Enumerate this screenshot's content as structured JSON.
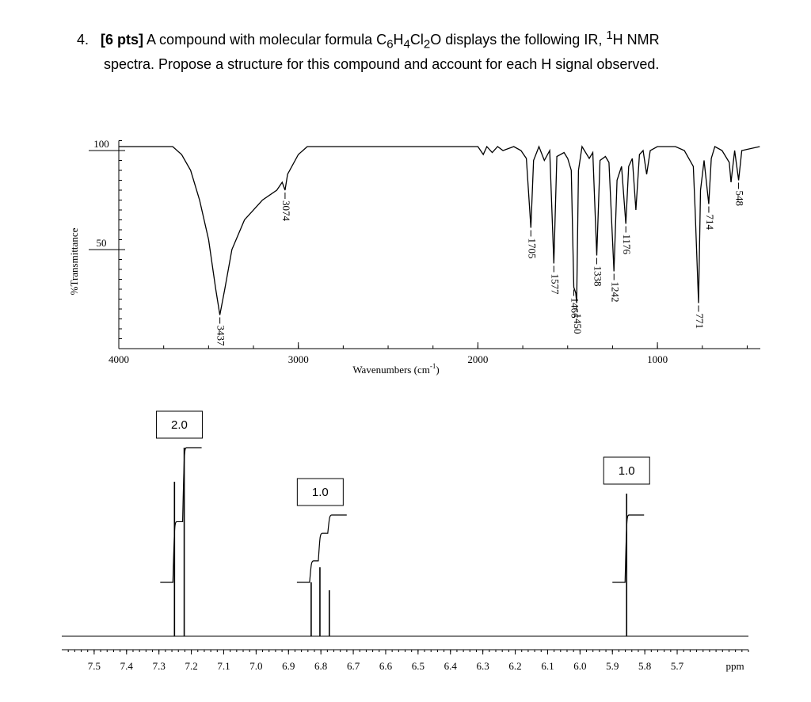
{
  "question": {
    "number": "4.",
    "points": "[6 pts]",
    "text_a": "A compound with molecular formula C",
    "sub_1": "6",
    "text_b": "H",
    "sub_2": "4",
    "text_c": "Cl",
    "sub_3": "2",
    "text_d": "O displays the following IR, ",
    "sup_1": "1",
    "text_e": "H NMR",
    "line_2": "spectra. Propose a structure for this compound and account for each H signal observed."
  },
  "chart_data": [
    {
      "type": "line",
      "y_label": "%Transmittance",
      "x_label": "Wavenumbers (cm",
      "x_label_sup": "-1",
      "x_label_end": ")",
      "xlim": [
        4000,
        427
      ],
      "ylim": [
        0,
        105
      ],
      "xticks": [
        4000,
        3000,
        2000,
        1000
      ],
      "yticks": [
        100,
        50
      ],
      "color": "#000000",
      "x": [
        4000,
        3700,
        3650,
        3600,
        3550,
        3500,
        3460,
        3437,
        3410,
        3370,
        3300,
        3200,
        3120,
        3090,
        3074,
        3060,
        3000,
        2950,
        2500,
        2000,
        1970,
        1950,
        1920,
        1890,
        1860,
        1800,
        1760,
        1730,
        1705,
        1690,
        1660,
        1630,
        1600,
        1577,
        1560,
        1520,
        1500,
        1480,
        1466,
        1455,
        1450,
        1440,
        1420,
        1380,
        1360,
        1338,
        1320,
        1290,
        1270,
        1242,
        1225,
        1200,
        1176,
        1160,
        1140,
        1120,
        1100,
        1080,
        1060,
        1040,
        1000,
        900,
        850,
        800,
        790,
        771,
        760,
        740,
        714,
        700,
        680,
        640,
        600,
        590,
        570,
        548,
        530,
        430
      ],
      "values": [
        102,
        102,
        98,
        90,
        75,
        55,
        30,
        17,
        30,
        50,
        65,
        75,
        80,
        84,
        80,
        88,
        98,
        102,
        102,
        102,
        98,
        102,
        99,
        102,
        100,
        102,
        100,
        96,
        61,
        95,
        102,
        95,
        100,
        43,
        97,
        99,
        96,
        90,
        31,
        28,
        23,
        90,
        102,
        96,
        99,
        47,
        95,
        97,
        94,
        39,
        85,
        92,
        63,
        92,
        96,
        70,
        98,
        100,
        88,
        100,
        102,
        102,
        100,
        92,
        70,
        23,
        80,
        95,
        73,
        96,
        102,
        100,
        94,
        84,
        100,
        85,
        100,
        102
      ],
      "peak_labels": [
        3437,
        3074,
        1705,
        1577,
        1466,
        1450,
        1338,
        1242,
        1176,
        771,
        714,
        548
      ]
    },
    {
      "type": "nmr",
      "x_label": "ppm",
      "xlim": [
        7.6,
        5.48
      ],
      "ylim": [
        0,
        250
      ],
      "color": "#000000",
      "xticks": [
        7.5,
        7.4,
        7.3,
        7.2,
        7.1,
        {
          "value": 7,
          "label": "7.0"
        },
        6.9,
        6.8,
        6.7,
        6.6,
        6.5,
        6.4,
        6.3,
        6.2,
        6.1,
        {
          "value": 6,
          "label": "6.0"
        },
        5.9,
        5.8,
        5.7
      ],
      "x": [
        7.252,
        7.222,
        6.83,
        6.803,
        6.774,
        5.856
      ],
      "values": [
        195,
        238,
        68,
        87,
        58,
        180
      ],
      "integrations": [
        {
          "value": 2,
          "label": "2.0"
        },
        {
          "value": 1,
          "label": "1.0"
        },
        {
          "value": 1,
          "label": "1.0"
        }
      ]
    }
  ]
}
